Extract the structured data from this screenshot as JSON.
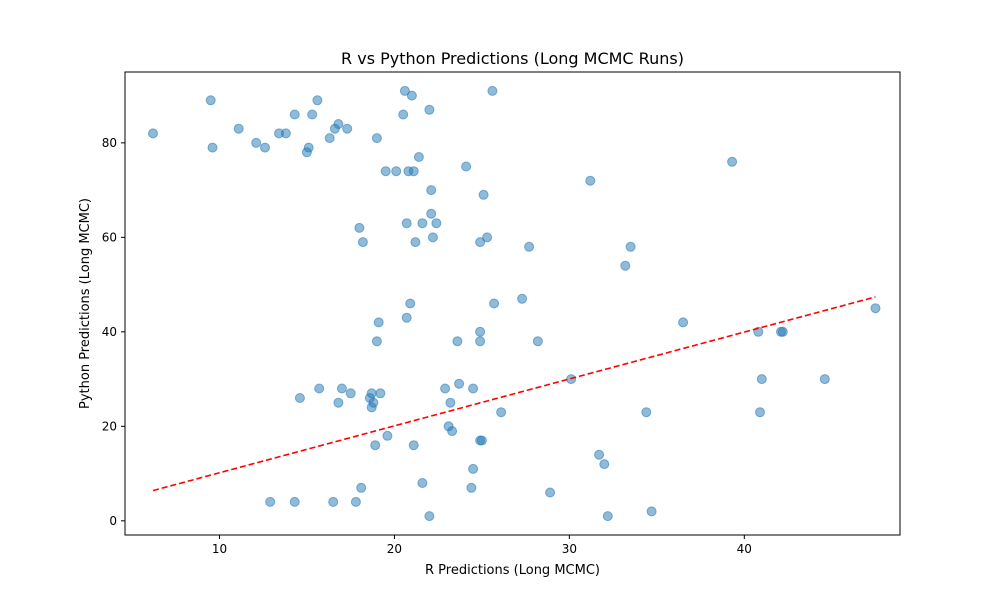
{
  "chart_data": {
    "type": "scatter",
    "title": "R vs Python Predictions (Long MCMC Runs)",
    "xlabel": "R Predictions (Long MCMC)",
    "ylabel": "Python Predictions (Long MCMC)",
    "xlim": [
      4.6,
      48.9
    ],
    "ylim": [
      -3,
      95
    ],
    "xticks": [
      10,
      20,
      30,
      40
    ],
    "yticks": [
      0,
      20,
      40,
      60,
      80
    ],
    "grid": false,
    "colors": {
      "points": "#1f77b4",
      "fit_line": "#ff0000"
    },
    "points": [
      {
        "x": 6.2,
        "y": 82
      },
      {
        "x": 9.5,
        "y": 89
      },
      {
        "x": 9.6,
        "y": 79
      },
      {
        "x": 11.1,
        "y": 83
      },
      {
        "x": 12.1,
        "y": 80
      },
      {
        "x": 12.6,
        "y": 79
      },
      {
        "x": 13.4,
        "y": 82
      },
      {
        "x": 13.8,
        "y": 82
      },
      {
        "x": 14.3,
        "y": 86
      },
      {
        "x": 15.0,
        "y": 78
      },
      {
        "x": 15.1,
        "y": 79
      },
      {
        "x": 15.3,
        "y": 86
      },
      {
        "x": 15.6,
        "y": 89
      },
      {
        "x": 16.3,
        "y": 81
      },
      {
        "x": 16.6,
        "y": 83
      },
      {
        "x": 16.8,
        "y": 84
      },
      {
        "x": 17.3,
        "y": 83
      },
      {
        "x": 19.0,
        "y": 81
      },
      {
        "x": 19.5,
        "y": 74
      },
      {
        "x": 20.1,
        "y": 74
      },
      {
        "x": 20.6,
        "y": 91
      },
      {
        "x": 20.5,
        "y": 86
      },
      {
        "x": 21.0,
        "y": 90
      },
      {
        "x": 20.8,
        "y": 74
      },
      {
        "x": 21.1,
        "y": 74
      },
      {
        "x": 21.4,
        "y": 77
      },
      {
        "x": 22.0,
        "y": 87
      },
      {
        "x": 24.1,
        "y": 75
      },
      {
        "x": 25.6,
        "y": 91
      },
      {
        "x": 22.1,
        "y": 70
      },
      {
        "x": 25.1,
        "y": 69
      },
      {
        "x": 31.2,
        "y": 72
      },
      {
        "x": 39.3,
        "y": 76
      },
      {
        "x": 18.0,
        "y": 62
      },
      {
        "x": 18.2,
        "y": 59
      },
      {
        "x": 20.7,
        "y": 63
      },
      {
        "x": 21.2,
        "y": 59
      },
      {
        "x": 21.6,
        "y": 63
      },
      {
        "x": 22.1,
        "y": 65
      },
      {
        "x": 22.2,
        "y": 60
      },
      {
        "x": 22.4,
        "y": 63
      },
      {
        "x": 24.9,
        "y": 59
      },
      {
        "x": 25.3,
        "y": 60
      },
      {
        "x": 27.7,
        "y": 58
      },
      {
        "x": 33.5,
        "y": 58
      },
      {
        "x": 33.2,
        "y": 54
      },
      {
        "x": 20.9,
        "y": 46
      },
      {
        "x": 20.7,
        "y": 43
      },
      {
        "x": 19.1,
        "y": 42
      },
      {
        "x": 25.7,
        "y": 46
      },
      {
        "x": 27.3,
        "y": 47
      },
      {
        "x": 19.0,
        "y": 38
      },
      {
        "x": 23.6,
        "y": 38
      },
      {
        "x": 24.9,
        "y": 40
      },
      {
        "x": 24.9,
        "y": 38
      },
      {
        "x": 28.2,
        "y": 38
      },
      {
        "x": 36.5,
        "y": 42
      },
      {
        "x": 40.8,
        "y": 40
      },
      {
        "x": 42.1,
        "y": 40
      },
      {
        "x": 42.2,
        "y": 40
      },
      {
        "x": 47.5,
        "y": 45
      },
      {
        "x": 14.6,
        "y": 26
      },
      {
        "x": 15.7,
        "y": 28
      },
      {
        "x": 16.8,
        "y": 25
      },
      {
        "x": 17.0,
        "y": 28
      },
      {
        "x": 17.5,
        "y": 27
      },
      {
        "x": 18.6,
        "y": 26
      },
      {
        "x": 18.7,
        "y": 27
      },
      {
        "x": 18.8,
        "y": 25
      },
      {
        "x": 18.7,
        "y": 24
      },
      {
        "x": 19.2,
        "y": 27
      },
      {
        "x": 18.9,
        "y": 16
      },
      {
        "x": 19.6,
        "y": 18
      },
      {
        "x": 21.1,
        "y": 16
      },
      {
        "x": 22.9,
        "y": 28
      },
      {
        "x": 23.2,
        "y": 25
      },
      {
        "x": 23.7,
        "y": 29
      },
      {
        "x": 24.5,
        "y": 28
      },
      {
        "x": 23.1,
        "y": 20
      },
      {
        "x": 23.3,
        "y": 19
      },
      {
        "x": 24.9,
        "y": 17
      },
      {
        "x": 25.0,
        "y": 17
      },
      {
        "x": 26.1,
        "y": 23
      },
      {
        "x": 30.1,
        "y": 30
      },
      {
        "x": 31.7,
        "y": 14
      },
      {
        "x": 32.0,
        "y": 12
      },
      {
        "x": 34.4,
        "y": 23
      },
      {
        "x": 40.9,
        "y": 23
      },
      {
        "x": 41.0,
        "y": 30
      },
      {
        "x": 44.6,
        "y": 30
      },
      {
        "x": 12.9,
        "y": 4
      },
      {
        "x": 14.3,
        "y": 4
      },
      {
        "x": 16.5,
        "y": 4
      },
      {
        "x": 17.8,
        "y": 4
      },
      {
        "x": 18.1,
        "y": 7
      },
      {
        "x": 21.6,
        "y": 8
      },
      {
        "x": 22.0,
        "y": 1
      },
      {
        "x": 24.4,
        "y": 7
      },
      {
        "x": 24.5,
        "y": 11
      },
      {
        "x": 28.9,
        "y": 6
      },
      {
        "x": 32.2,
        "y": 1
      },
      {
        "x": 34.7,
        "y": 2
      }
    ],
    "fit_line": {
      "style": "dashed",
      "x": [
        6.2,
        47.5
      ],
      "y": [
        6.4,
        47.4
      ]
    }
  }
}
